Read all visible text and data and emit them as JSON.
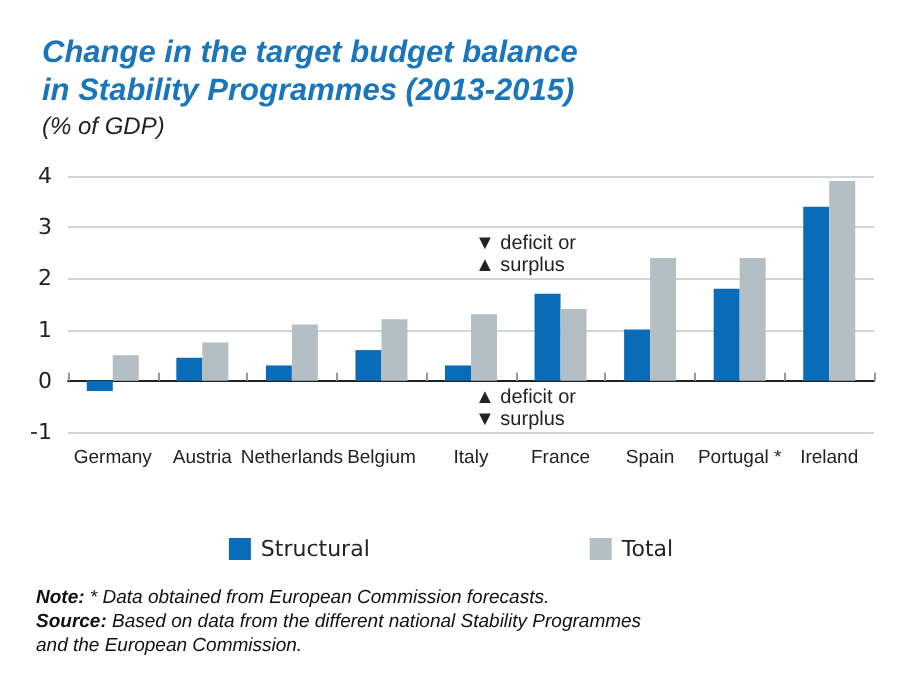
{
  "chart_data": {
    "type": "bar",
    "title": "Change in the target budget balance\nin Stability Programmes (2013-2015)",
    "ylabel": "(% of GDP)",
    "categories": [
      "Germany",
      "Austria",
      "Netherlands",
      "Belgium",
      "Italy",
      "France",
      "Spain",
      "Portugal *",
      "Ireland"
    ],
    "series": [
      {
        "name": "Structural",
        "color": "#0a6cb8",
        "values": [
          -0.2,
          0.45,
          0.3,
          0.6,
          0.3,
          1.7,
          1.0,
          1.8,
          3.4
        ]
      },
      {
        "name": "Total",
        "color": "#b3bfc5",
        "values": [
          0.5,
          0.75,
          1.1,
          1.2,
          1.3,
          1.4,
          2.4,
          2.4,
          3.9
        ]
      }
    ],
    "ylim": [
      -1,
      4
    ],
    "yticks": [
      -1,
      0,
      1,
      2,
      3,
      4
    ],
    "grid": "y",
    "legend": "bottom",
    "annotations": [
      "▼ deficit or\n▲ surplus",
      "▲ deficit or\n▼ surplus",
      "Note: * Data obtained from European Commission forecasts.",
      "Source: Based on data from the different national Stability Programmes\nand the European Commission."
    ]
  }
}
